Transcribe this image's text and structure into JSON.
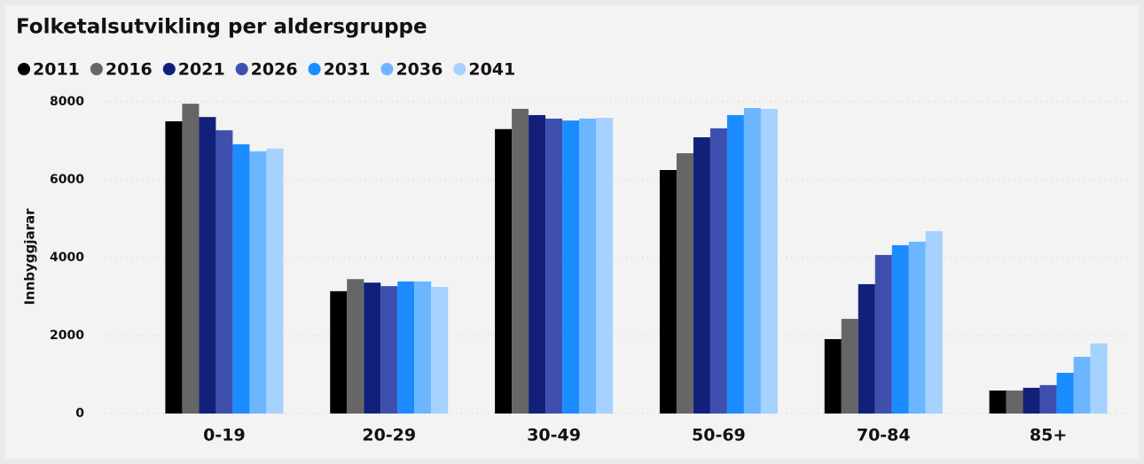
{
  "chart_data": {
    "type": "bar",
    "title": "Folketalsutvikling per aldersgruppe",
    "y_label": "Innbyggjarar",
    "categories": [
      "0-19",
      "20-29",
      "30-49",
      "50-69",
      "70-84",
      "85+"
    ],
    "series": [
      {
        "name": "2011",
        "color": "#000000",
        "values": [
          7500,
          3140,
          7300,
          6250,
          1910,
          590
        ]
      },
      {
        "name": "2016",
        "color": "#666666",
        "values": [
          7950,
          3450,
          7820,
          6680,
          2430,
          590
        ]
      },
      {
        "name": "2021",
        "color": "#12207a",
        "values": [
          7610,
          3360,
          7660,
          7090,
          3320,
          660
        ]
      },
      {
        "name": "2026",
        "color": "#3f4fae",
        "values": [
          7270,
          3270,
          7570,
          7320,
          4070,
          730
        ]
      },
      {
        "name": "2031",
        "color": "#1a8cff",
        "values": [
          6910,
          3390,
          7520,
          7660,
          4320,
          1045
        ]
      },
      {
        "name": "2036",
        "color": "#6cb6ff",
        "values": [
          6730,
          3390,
          7570,
          7840,
          4410,
          1455
        ]
      },
      {
        "name": "2041",
        "color": "#a6d2ff",
        "values": [
          6800,
          3250,
          7590,
          7820,
          4680,
          1800
        ]
      }
    ],
    "ylim": [
      0,
      8000
    ],
    "yticks": [
      0,
      2000,
      4000,
      6000,
      8000
    ],
    "grid": true,
    "legend": "top-left"
  }
}
